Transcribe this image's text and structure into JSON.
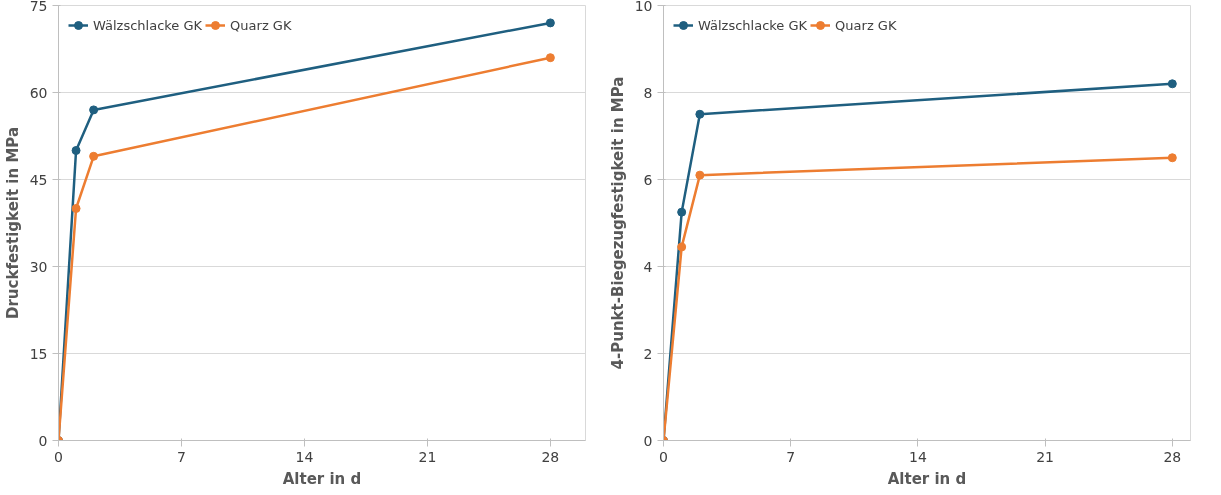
{
  "chart_data": [
    {
      "type": "line",
      "xlabel": "Alter in d",
      "ylabel": "Druckfestigkeit in MPa",
      "xlim": [
        0,
        30
      ],
      "xticks": [
        0,
        7,
        14,
        21,
        28
      ],
      "ylim": [
        0,
        75
      ],
      "yticks": [
        0,
        15,
        30,
        45,
        60,
        75
      ],
      "grid": "y",
      "legend": "top left",
      "marker": "circle",
      "line_style": "solid",
      "x": [
        0,
        1,
        2,
        28
      ],
      "series": [
        {
          "name": "Wälzschlacke GK",
          "color": "#1f5f80",
          "values": [
            0,
            50,
            57,
            72
          ]
        },
        {
          "name": "Quarz GK",
          "color": "#ed7d31",
          "values": [
            0,
            40,
            49,
            66
          ]
        }
      ]
    },
    {
      "type": "line",
      "xlabel": "Alter in d",
      "ylabel": "4-Punkt-Biegezugfestigkeit in MPa",
      "xlim": [
        0,
        29
      ],
      "xticks": [
        0,
        7,
        14,
        21,
        28
      ],
      "ylim": [
        0,
        10
      ],
      "yticks": [
        0,
        2,
        4,
        6,
        8,
        10
      ],
      "grid": "y",
      "legend": "top left",
      "marker": "circle",
      "line_style": "solid",
      "x": [
        0,
        1,
        2,
        28
      ],
      "series": [
        {
          "name": "Wälzschlacke GK",
          "color": "#1f5f80",
          "values": [
            0,
            5.25,
            7.5,
            8.2
          ]
        },
        {
          "name": "Quarz GK",
          "color": "#ed7d31",
          "values": [
            0,
            4.45,
            6.1,
            6.5
          ]
        }
      ]
    }
  ]
}
